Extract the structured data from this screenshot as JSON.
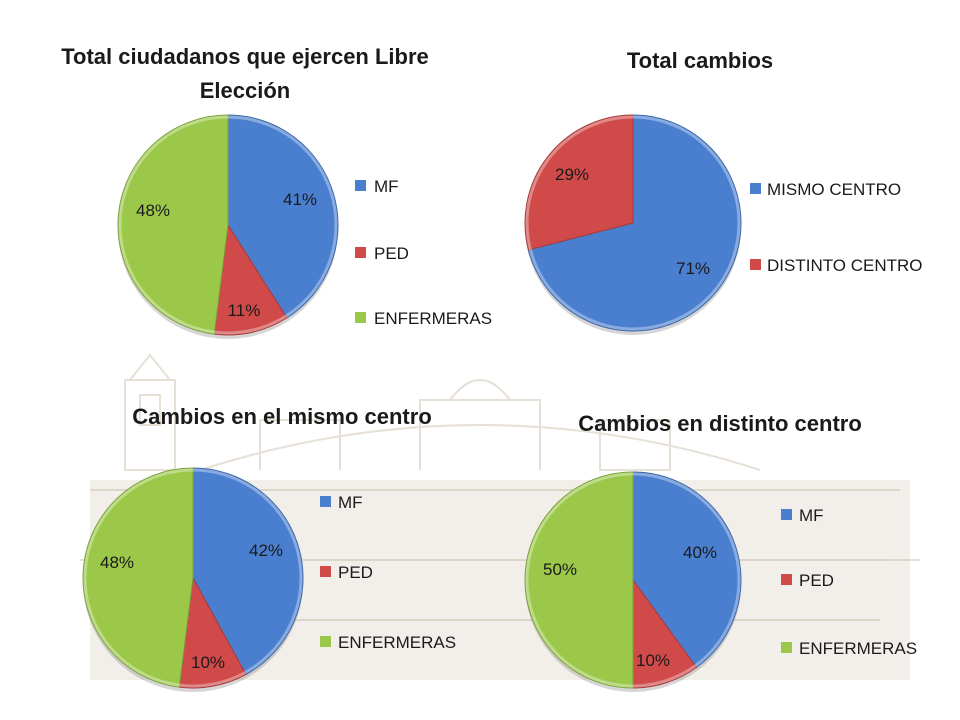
{
  "colors": {
    "blue": "#4a7fd0",
    "red": "#d04a4a",
    "green": "#9cc84a",
    "background_sketch": "#b8a88c"
  },
  "chart_data": [
    {
      "type": "pie",
      "title_lines": [
        "Total ciudadanos que ejercen Libre",
        "Elección"
      ],
      "slices": [
        {
          "label": "MF",
          "value": 41,
          "display": "41%",
          "color": "#4a7fd0"
        },
        {
          "label": "PED",
          "value": 11,
          "display": "11%",
          "color": "#d04a4a"
        },
        {
          "label": "ENFERMERAS",
          "value": 48,
          "display": "48%",
          "color": "#9cc84a"
        }
      ],
      "legend_position": "right"
    },
    {
      "type": "pie",
      "title_lines": [
        "Total cambios"
      ],
      "slices": [
        {
          "label": "MISMO CENTRO",
          "value": 71,
          "display": "71%",
          "color": "#4a7fd0"
        },
        {
          "label": "DISTINTO CENTRO",
          "value": 29,
          "display": "29%",
          "color": "#d04a4a"
        }
      ],
      "legend_position": "right"
    },
    {
      "type": "pie",
      "title_lines": [
        "Cambios en el mismo centro"
      ],
      "slices": [
        {
          "label": "MF",
          "value": 42,
          "display": "42%",
          "color": "#4a7fd0"
        },
        {
          "label": "PED",
          "value": 10,
          "display": "10%",
          "color": "#d04a4a"
        },
        {
          "label": "ENFERMERAS",
          "value": 48,
          "display": "48%",
          "color": "#9cc84a"
        }
      ],
      "legend_position": "right"
    },
    {
      "type": "pie",
      "title_lines": [
        "Cambios en distinto centro"
      ],
      "slices": [
        {
          "label": "MF",
          "value": 40,
          "display": "40%",
          "color": "#4a7fd0"
        },
        {
          "label": "PED",
          "value": 10,
          "display": "10%",
          "color": "#d04a4a"
        },
        {
          "label": "ENFERMERAS",
          "value": 50,
          "display": "50%",
          "color": "#9cc84a"
        }
      ],
      "legend_position": "right"
    }
  ]
}
